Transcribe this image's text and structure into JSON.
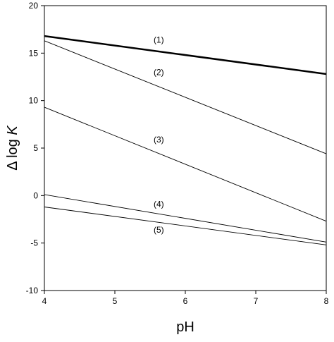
{
  "chart_data": {
    "type": "line",
    "xlabel": "pH",
    "ylabel_prefix": "Δ log ",
    "ylabel_var": "K",
    "xlim": [
      4,
      8
    ],
    "ylim": [
      -10,
      20
    ],
    "xticks": [
      4,
      5,
      6,
      7,
      8
    ],
    "yticks": [
      -10,
      -5,
      0,
      5,
      10,
      15,
      20
    ],
    "xtick_labels": [
      "4",
      "5",
      "6",
      "7",
      "8"
    ],
    "ytick_labels": [
      "-10",
      "-5",
      "0",
      "5",
      "10",
      "15",
      "20"
    ],
    "grid": false,
    "legend": "none",
    "series": [
      {
        "name": "(1)",
        "x": [
          4,
          8
        ],
        "y": [
          16.8,
          12.8
        ],
        "color": "#000000",
        "weight": "bold",
        "label_x": 5.55,
        "label_y": 16.1
      },
      {
        "name": "(2)",
        "x": [
          4,
          8
        ],
        "y": [
          16.3,
          4.4
        ],
        "color": "#000000",
        "weight": "thin",
        "label_x": 5.55,
        "label_y": 12.7
      },
      {
        "name": "(3)",
        "x": [
          4,
          8
        ],
        "y": [
          9.3,
          -2.7
        ],
        "color": "#000000",
        "weight": "thin",
        "label_x": 5.55,
        "label_y": 5.6
      },
      {
        "name": "(4)",
        "x": [
          4,
          8
        ],
        "y": [
          0.1,
          -4.9
        ],
        "color": "#000000",
        "weight": "thin",
        "label_x": 5.55,
        "label_y": -1.2
      },
      {
        "name": "(5)",
        "x": [
          4,
          8
        ],
        "y": [
          -1.2,
          -5.2
        ],
        "color": "#000000",
        "weight": "thin",
        "label_x": 5.55,
        "label_y": -3.9
      }
    ]
  }
}
